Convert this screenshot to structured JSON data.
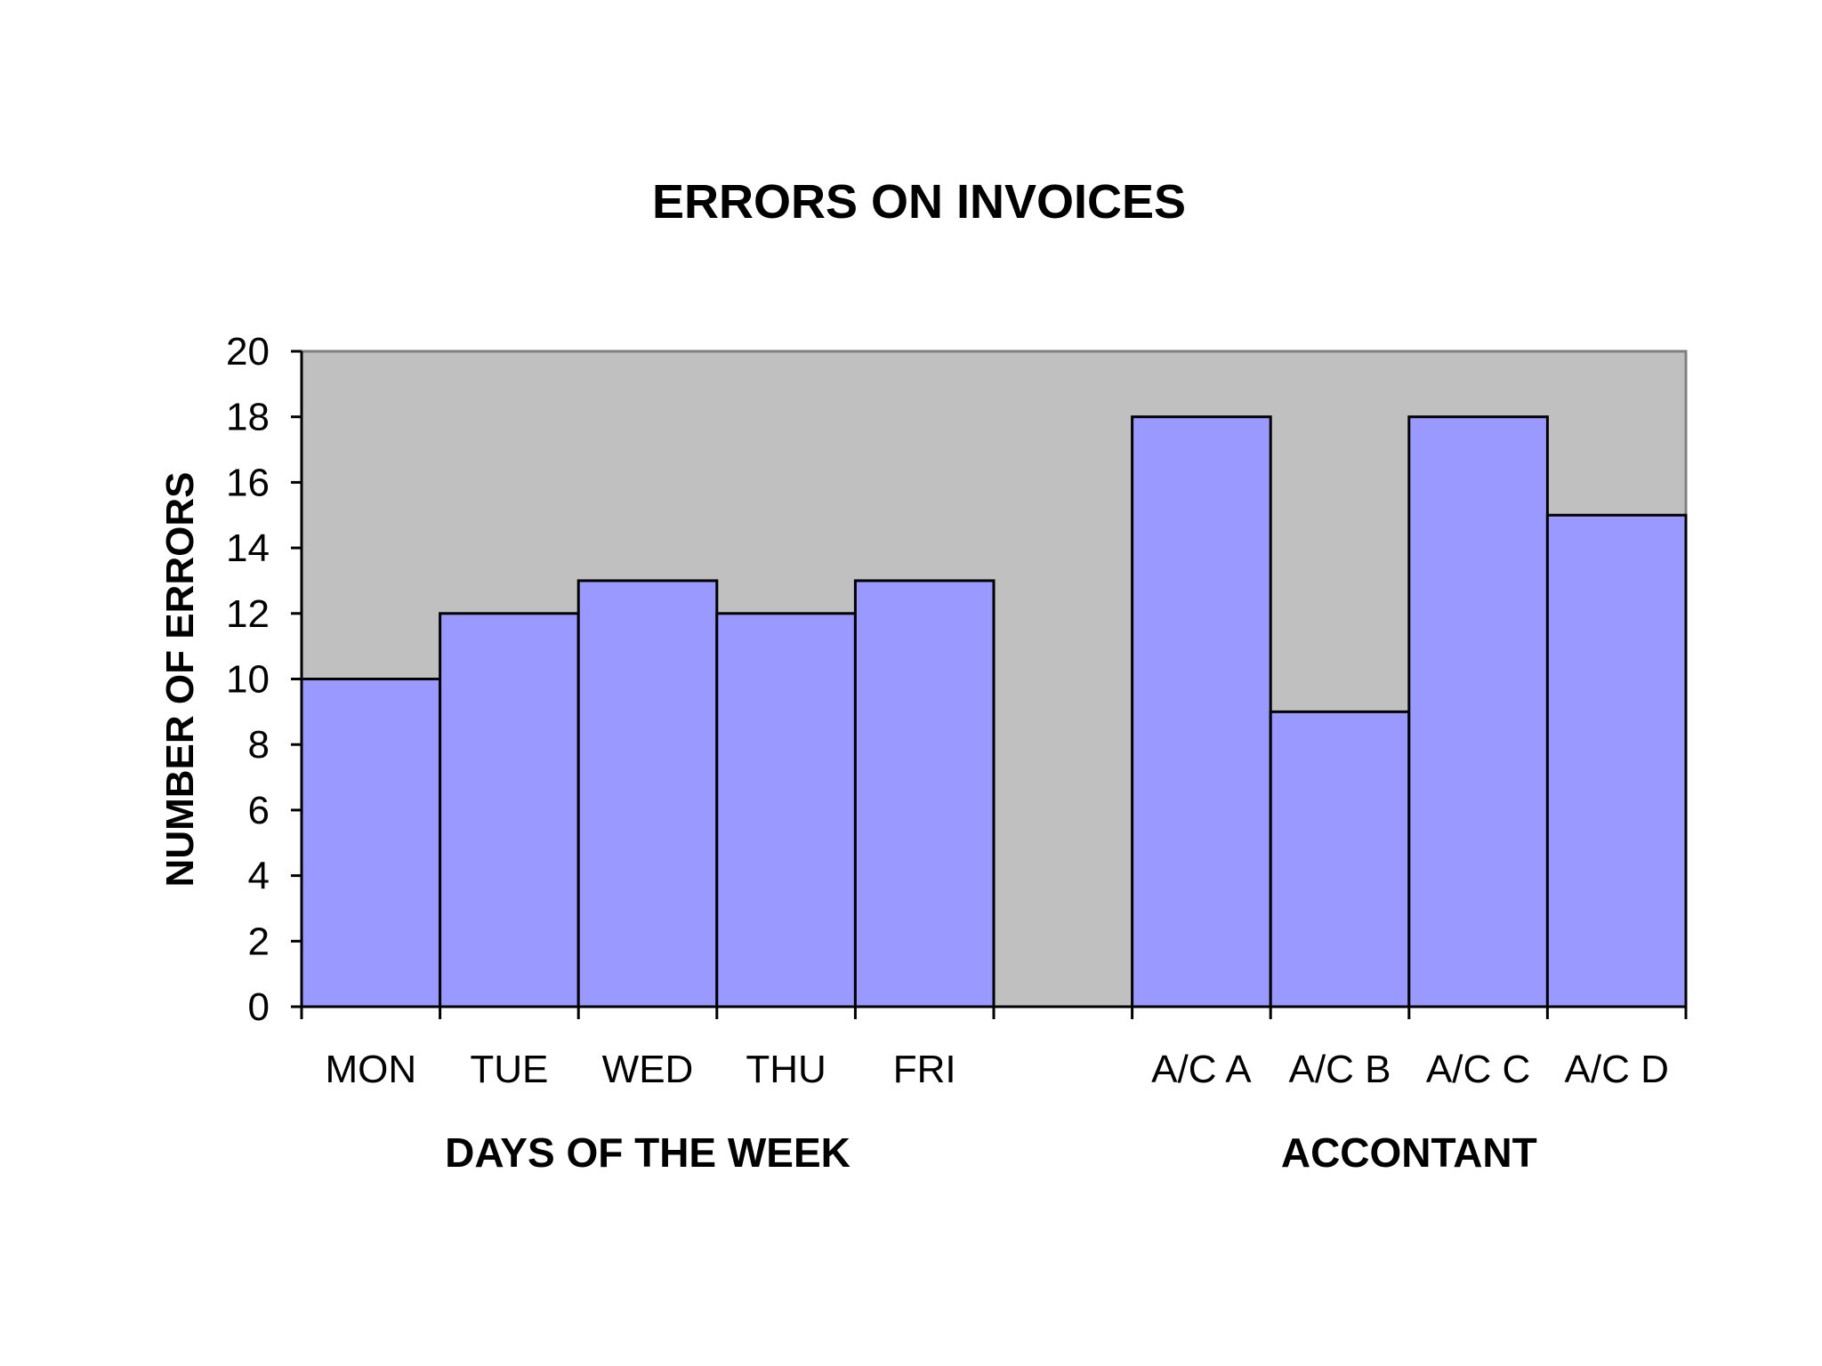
{
  "chart_data": {
    "type": "bar",
    "title": "ERRORS ON INVOICES",
    "ylabel": "NUMBER OF ERRORS",
    "ylim": [
      0,
      20
    ],
    "yticks": [
      0,
      2,
      4,
      6,
      8,
      10,
      12,
      14,
      16,
      18,
      20
    ],
    "grid": false,
    "legend": "none",
    "groups": [
      {
        "label": "DAYS OF THE WEEK",
        "categories": [
          "MON",
          "TUE",
          "WED",
          "THU",
          "FRI"
        ],
        "values": [
          10,
          12,
          13,
          12,
          13
        ]
      },
      {
        "label": "ACCONTANT",
        "categories": [
          "A/C A",
          "A/C B",
          "A/C C",
          "A/C D"
        ],
        "values": [
          18,
          9,
          18,
          15
        ]
      }
    ],
    "colors": {
      "bar": "#9999ff",
      "plot_background": "#c0c0c0",
      "outline": "#000000"
    }
  }
}
